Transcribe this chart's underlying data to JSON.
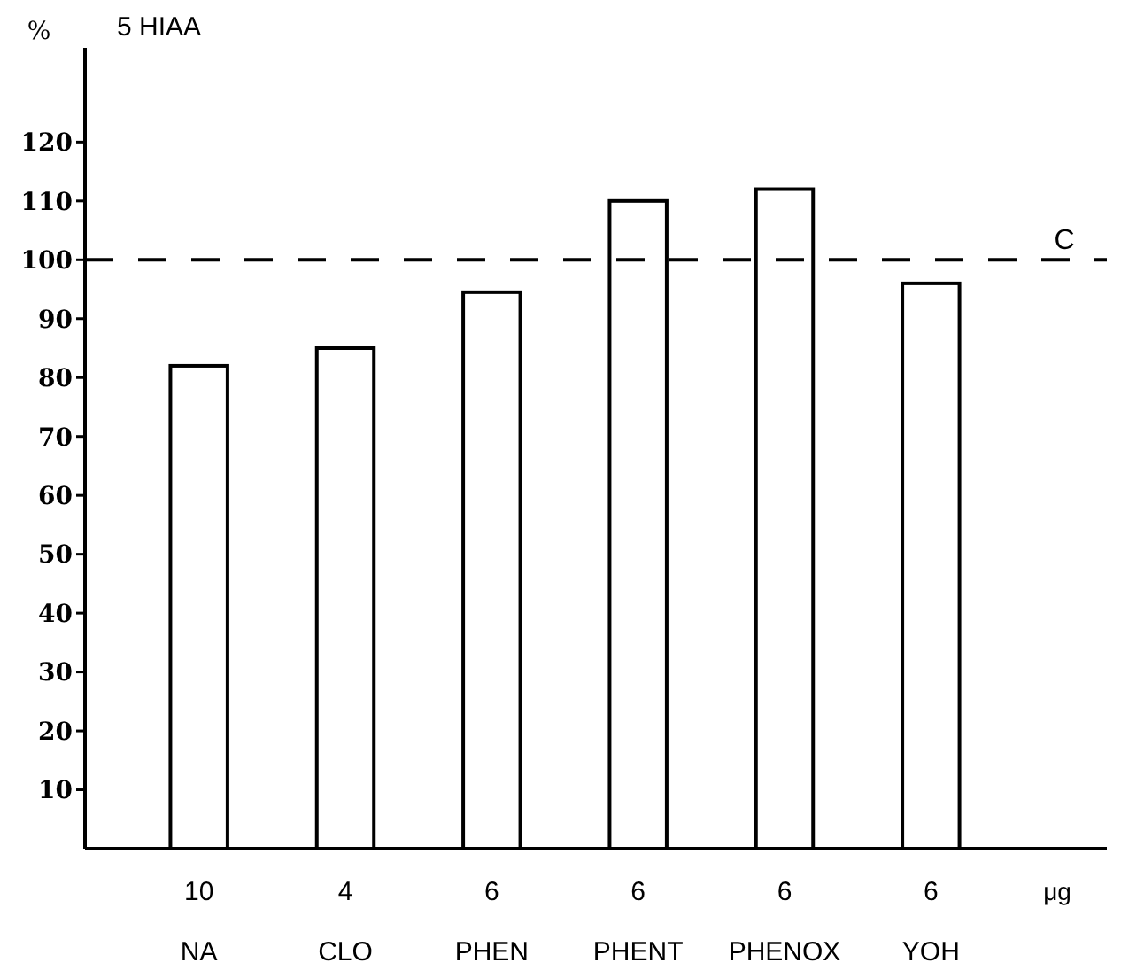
{
  "chart_data": {
    "type": "bar",
    "title": "5 HIAA",
    "ylabel": "%",
    "xlabel": "μg",
    "categories": [
      "10\nNA",
      "4\nCLO",
      "6\nPHEN",
      "6\nPHENT",
      "6\nPHENOX",
      "6\nYOH"
    ],
    "values": [
      82,
      85,
      94.5,
      110,
      112,
      96
    ],
    "color": "#ffffff",
    "ylim": [
      0,
      136
    ],
    "yticks": [
      10,
      20,
      30,
      40,
      50,
      60,
      70,
      80,
      90,
      100,
      110,
      120
    ],
    "grid": false,
    "ref_lines": [
      {
        "axis": "y",
        "value": 100,
        "label": "C",
        "line_style": "dashed",
        "color": "#000000"
      }
    ]
  }
}
